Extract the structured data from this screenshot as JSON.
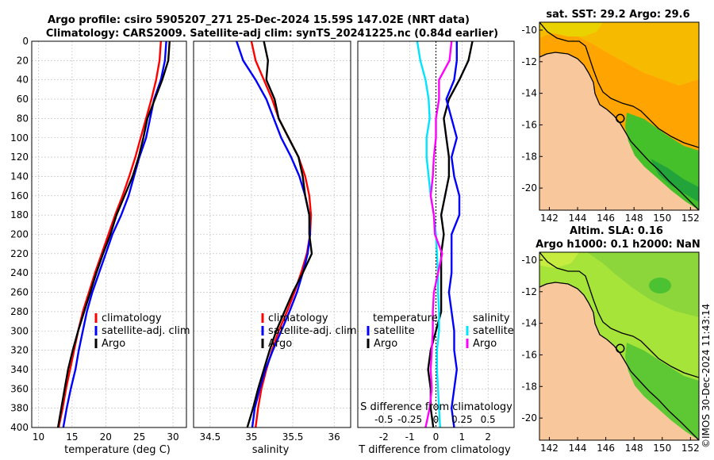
{
  "header": {
    "title_line1": "Argo profile: csiro 5905207_271 25-Dec-2024 15.59S 147.02E (NRT data)",
    "title_line2": "Climatology: CARS2009. Satellite-adj clim: synTS_20241225.nc (0.84d earlier)"
  },
  "colors": {
    "climatology": "#ff0000",
    "satellite": "#0000ff",
    "argo": "#000000",
    "sal_satellite": "#00e5ff",
    "sal_argo": "#ff00ff",
    "land": "#f8c89c",
    "grid": "#b8b8b8"
  },
  "depth_axis": {
    "min": 0,
    "max": 400,
    "ticks": [
      0,
      20,
      40,
      60,
      80,
      100,
      120,
      140,
      160,
      180,
      200,
      220,
      240,
      260,
      280,
      300,
      320,
      340,
      360,
      380,
      400
    ]
  },
  "legend": {
    "climatology": "climatology",
    "satellite_clim": "satellite-adj. clim",
    "argo": "Argo",
    "temperature": "temperature",
    "salinity": "salinity",
    "satellite": "satellite"
  },
  "chart_data": [
    {
      "type": "line",
      "name": "temperature",
      "xlabel": "temperature (deg C)",
      "ylabel": "depth",
      "xlim": [
        9,
        32
      ],
      "ylim": [
        400,
        0
      ],
      "xticks": [
        10,
        15,
        20,
        25,
        30
      ],
      "series": [
        {
          "name": "climatology",
          "points": [
            [
              28.2,
              0
            ],
            [
              28.0,
              20
            ],
            [
              27.5,
              40
            ],
            [
              26.8,
              60
            ],
            [
              26.0,
              80
            ],
            [
              25.2,
              100
            ],
            [
              24.4,
              120
            ],
            [
              23.5,
              140
            ],
            [
              22.5,
              160
            ],
            [
              21.4,
              180
            ],
            [
              20.4,
              200
            ],
            [
              19.4,
              220
            ],
            [
              18.4,
              240
            ],
            [
              17.5,
              260
            ],
            [
              16.6,
              280
            ],
            [
              15.9,
              300
            ],
            [
              15.3,
              320
            ],
            [
              14.7,
              340
            ],
            [
              14.1,
              360
            ],
            [
              13.6,
              380
            ],
            [
              13.0,
              400
            ]
          ]
        },
        {
          "name": "satellite-adj. clim",
          "points": [
            [
              29.0,
              0
            ],
            [
              28.8,
              20
            ],
            [
              28.2,
              40
            ],
            [
              27.2,
              60
            ],
            [
              26.6,
              80
            ],
            [
              26.0,
              100
            ],
            [
              25.0,
              120
            ],
            [
              24.2,
              140
            ],
            [
              23.4,
              160
            ],
            [
              22.3,
              180
            ],
            [
              21.0,
              200
            ],
            [
              20.0,
              220
            ],
            [
              19.0,
              240
            ],
            [
              18.0,
              260
            ],
            [
              17.2,
              280
            ],
            [
              16.6,
              300
            ],
            [
              16.0,
              320
            ],
            [
              15.5,
              340
            ],
            [
              14.8,
              360
            ],
            [
              14.2,
              380
            ],
            [
              13.7,
              400
            ]
          ]
        },
        {
          "name": "Argo",
          "points": [
            [
              29.5,
              0
            ],
            [
              29.3,
              20
            ],
            [
              28.4,
              40
            ],
            [
              27.3,
              60
            ],
            [
              26.2,
              80
            ],
            [
              25.6,
              100
            ],
            [
              24.9,
              120
            ],
            [
              24.0,
              140
            ],
            [
              22.8,
              160
            ],
            [
              21.6,
              180
            ],
            [
              20.7,
              200
            ],
            [
              19.6,
              220
            ],
            [
              18.6,
              240
            ],
            [
              17.7,
              260
            ],
            [
              16.8,
              280
            ],
            [
              15.9,
              300
            ],
            [
              15.1,
              320
            ],
            [
              14.4,
              340
            ],
            [
              13.9,
              360
            ],
            [
              13.4,
              380
            ],
            [
              12.9,
              400
            ]
          ]
        }
      ]
    },
    {
      "type": "line",
      "name": "salinity",
      "xlabel": "salinity",
      "ylabel": "depth",
      "xlim": [
        34.3,
        36.2
      ],
      "ylim": [
        400,
        0
      ],
      "xticks": [
        34.5,
        35,
        35.5,
        36
      ],
      "series": [
        {
          "name": "climatology",
          "points": [
            [
              35.0,
              0
            ],
            [
              35.05,
              20
            ],
            [
              35.15,
              40
            ],
            [
              35.25,
              60
            ],
            [
              35.33,
              80
            ],
            [
              35.45,
              100
            ],
            [
              35.57,
              120
            ],
            [
              35.65,
              140
            ],
            [
              35.7,
              160
            ],
            [
              35.72,
              180
            ],
            [
              35.71,
              200
            ],
            [
              35.67,
              220
            ],
            [
              35.6,
              240
            ],
            [
              35.52,
              260
            ],
            [
              35.43,
              280
            ],
            [
              35.33,
              300
            ],
            [
              35.25,
              320
            ],
            [
              35.18,
              340
            ],
            [
              35.12,
              360
            ],
            [
              35.08,
              380
            ],
            [
              35.05,
              400
            ]
          ]
        },
        {
          "name": "satellite-adj. clim",
          "points": [
            [
              34.82,
              0
            ],
            [
              34.9,
              20
            ],
            [
              35.05,
              40
            ],
            [
              35.18,
              60
            ],
            [
              35.27,
              80
            ],
            [
              35.36,
              100
            ],
            [
              35.48,
              120
            ],
            [
              35.58,
              140
            ],
            [
              35.65,
              160
            ],
            [
              35.7,
              180
            ],
            [
              35.71,
              200
            ],
            [
              35.68,
              220
            ],
            [
              35.62,
              240
            ],
            [
              35.55,
              260
            ],
            [
              35.46,
              280
            ],
            [
              35.36,
              300
            ],
            [
              35.26,
              320
            ],
            [
              35.17,
              340
            ],
            [
              35.1,
              360
            ],
            [
              35.04,
              380
            ],
            [
              35.01,
              400
            ]
          ]
        },
        {
          "name": "Argo",
          "points": [
            [
              35.15,
              0
            ],
            [
              35.2,
              20
            ],
            [
              35.18,
              40
            ],
            [
              35.28,
              60
            ],
            [
              35.33,
              80
            ],
            [
              35.45,
              100
            ],
            [
              35.57,
              120
            ],
            [
              35.62,
              140
            ],
            [
              35.65,
              160
            ],
            [
              35.7,
              180
            ],
            [
              35.7,
              200
            ],
            [
              35.73,
              220
            ],
            [
              35.62,
              240
            ],
            [
              35.5,
              260
            ],
            [
              35.4,
              280
            ],
            [
              35.3,
              300
            ],
            [
              35.22,
              320
            ],
            [
              35.15,
              340
            ],
            [
              35.08,
              360
            ],
            [
              35.02,
              380
            ],
            [
              34.95,
              400
            ]
          ]
        }
      ]
    },
    {
      "type": "line",
      "name": "differences",
      "xlabel": "T difference from climatology",
      "xlabel_top": "S difference from climatology",
      "ylabel": "depth",
      "xlim": [
        -3,
        3
      ],
      "ylim": [
        400,
        0
      ],
      "xticks": [
        -2,
        -1,
        0,
        1,
        2
      ],
      "salinity_xlim": [
        -0.75,
        0.75
      ],
      "salinity_xticks": [
        -0.5,
        -0.25,
        0,
        0.25,
        0.5
      ],
      "salinity_ticklabels": [
        "-0.5",
        "-0.25",
        "0",
        "0.25",
        "0.5"
      ],
      "series": [
        {
          "name": "temperature Argo",
          "points": [
            [
              1.4,
              0
            ],
            [
              1.25,
              20
            ],
            [
              0.9,
              40
            ],
            [
              0.5,
              60
            ],
            [
              0.3,
              80
            ],
            [
              0.4,
              100
            ],
            [
              0.5,
              120
            ],
            [
              0.5,
              140
            ],
            [
              0.35,
              160
            ],
            [
              0.2,
              180
            ],
            [
              0.3,
              200
            ],
            [
              0.2,
              220
            ],
            [
              0.2,
              240
            ],
            [
              0.2,
              260
            ],
            [
              0.2,
              280
            ],
            [
              0.0,
              300
            ],
            [
              -0.2,
              320
            ],
            [
              -0.3,
              340
            ],
            [
              -0.2,
              360
            ],
            [
              -0.2,
              380
            ],
            [
              -0.1,
              400
            ]
          ]
        },
        {
          "name": "temperature satellite",
          "points": [
            [
              0.8,
              0
            ],
            [
              0.8,
              20
            ],
            [
              0.7,
              40
            ],
            [
              0.4,
              60
            ],
            [
              0.6,
              80
            ],
            [
              0.8,
              100
            ],
            [
              0.6,
              120
            ],
            [
              0.7,
              140
            ],
            [
              0.9,
              160
            ],
            [
              0.9,
              180
            ],
            [
              0.6,
              200
            ],
            [
              0.6,
              220
            ],
            [
              0.6,
              240
            ],
            [
              0.5,
              260
            ],
            [
              0.6,
              280
            ],
            [
              0.7,
              300
            ],
            [
              0.7,
              320
            ],
            [
              0.8,
              340
            ],
            [
              0.7,
              360
            ],
            [
              0.6,
              380
            ],
            [
              0.7,
              400
            ]
          ]
        },
        {
          "name": "salinity satellite",
          "points": [
            [
              -0.18,
              0
            ],
            [
              -0.15,
              20
            ],
            [
              -0.1,
              40
            ],
            [
              -0.07,
              60
            ],
            [
              -0.06,
              80
            ],
            [
              -0.09,
              100
            ],
            [
              -0.09,
              120
            ],
            [
              -0.07,
              140
            ],
            [
              -0.05,
              160
            ],
            [
              -0.02,
              180
            ],
            [
              0.0,
              200
            ],
            [
              0.01,
              220
            ],
            [
              0.02,
              240
            ],
            [
              0.02,
              260
            ],
            [
              0.03,
              280
            ],
            [
              0.03,
              300
            ],
            [
              0.01,
              320
            ],
            [
              0.01,
              340
            ],
            [
              0.02,
              360
            ],
            [
              0.03,
              380
            ],
            [
              0.04,
              400
            ]
          ]
        },
        {
          "name": "salinity Argo",
          "points": [
            [
              0.15,
              0
            ],
            [
              0.13,
              20
            ],
            [
              0.03,
              40
            ],
            [
              0.03,
              60
            ],
            [
              0.0,
              80
            ],
            [
              0.0,
              100
            ],
            [
              -0.02,
              120
            ],
            [
              -0.03,
              140
            ],
            [
              -0.05,
              160
            ],
            [
              -0.02,
              180
            ],
            [
              -0.01,
              200
            ],
            [
              0.06,
              220
            ],
            [
              0.02,
              240
            ],
            [
              -0.02,
              260
            ],
            [
              -0.03,
              280
            ],
            [
              -0.03,
              300
            ],
            [
              -0.04,
              320
            ],
            [
              -0.05,
              340
            ],
            [
              -0.04,
              360
            ],
            [
              -0.06,
              380
            ],
            [
              -0.1,
              400
            ]
          ]
        }
      ]
    },
    {
      "type": "heatmap",
      "name": "sst-map",
      "title": "sat. SST: 29.2 Argo: 29.6",
      "xticks": [
        142,
        144,
        146,
        148,
        150,
        152
      ],
      "yticks": [
        -10,
        -12,
        -14,
        -16,
        -18,
        -20
      ],
      "xlim": [
        141.3,
        152.6
      ],
      "ylim": [
        -21.4,
        -9.5
      ],
      "marker": {
        "lon": 147.02,
        "lat": -15.59
      }
    },
    {
      "type": "heatmap",
      "name": "sla-map",
      "title_line1": "Altim. SLA: 0.16",
      "title_line2": "Argo h1000: 0.1 h2000: NaN",
      "xticks": [
        142,
        144,
        146,
        148,
        150,
        152
      ],
      "yticks": [
        -10,
        -12,
        -14,
        -16,
        -18,
        -20
      ],
      "xlim": [
        141.3,
        152.6
      ],
      "ylim": [
        -21.4,
        -9.5
      ],
      "marker": {
        "lon": 147.02,
        "lat": -15.59
      }
    }
  ],
  "footer": {
    "stamp": "©IMOS 30-Dec-2024 11:43:14"
  }
}
